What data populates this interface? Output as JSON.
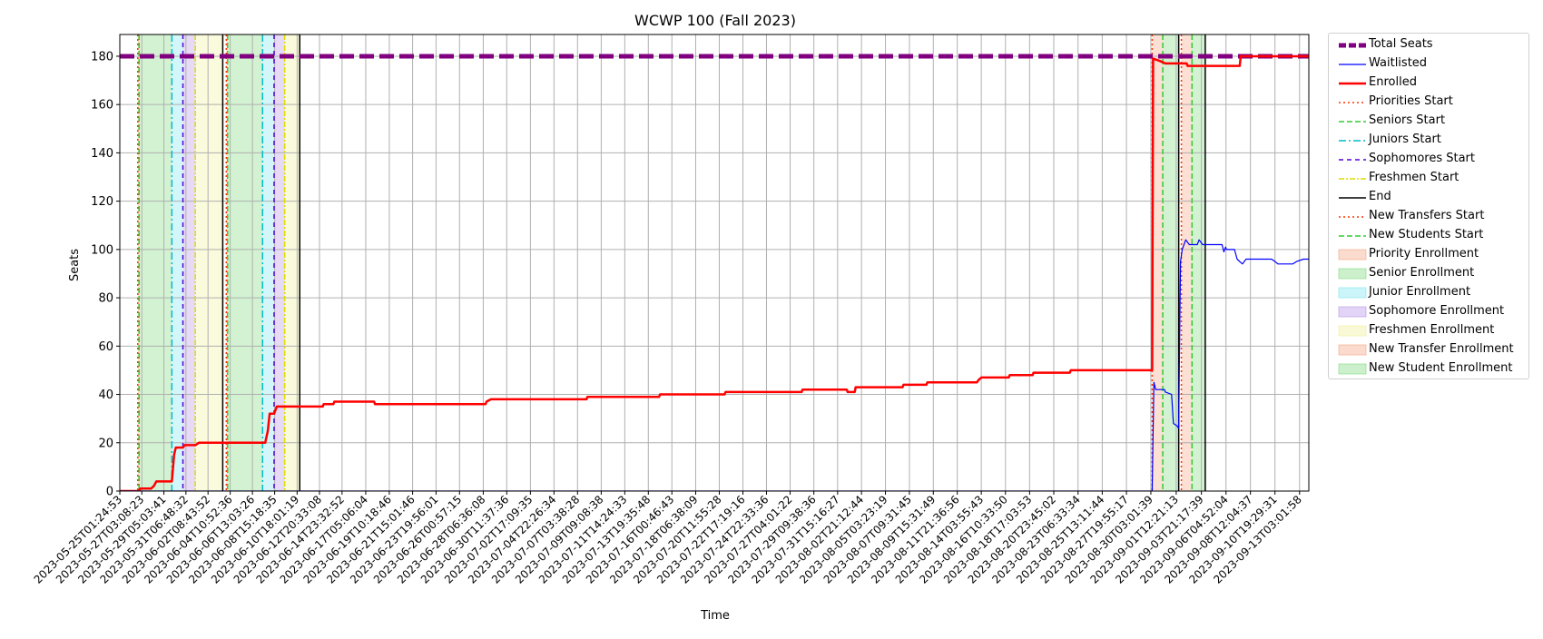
{
  "chart_data": {
    "type": "line",
    "title": "WCWP 100 (Fall 2023)",
    "xlabel": "Time",
    "ylabel": "Seats",
    "ylim": [
      0,
      189
    ],
    "xlim": [
      "2023-05-25T01:24:53",
      "2023-09-14T00:00:00"
    ],
    "y_ticks": [
      0,
      20,
      40,
      60,
      80,
      100,
      120,
      140,
      160,
      180
    ],
    "grid": true,
    "legend_position": "outside-right",
    "x_tick_labels": [
      "2023-05-25T01:24:53",
      "2023-05-27T03:08:23",
      "2023-05-29T05:03:41",
      "2023-05-31T06:48:32",
      "2023-06-02T08:43:52",
      "2023-06-04T10:52:36",
      "2023-06-06T13:03:26",
      "2023-06-08T15:18:35",
      "2023-06-10T18:01:19",
      "2023-06-12T20:33:08",
      "2023-06-14T23:32:52",
      "2023-06-17T05:06:04",
      "2023-06-19T10:18:46",
      "2023-06-21T15:01:46",
      "2023-06-23T19:56:01",
      "2023-06-26T00:57:15",
      "2023-06-28T06:36:08",
      "2023-06-30T11:37:36",
      "2023-07-02T17:09:35",
      "2023-07-04T22:26:34",
      "2023-07-07T03:38:28",
      "2023-07-09T09:08:38",
      "2023-07-11T14:24:33",
      "2023-07-13T19:35:48",
      "2023-07-16T00:46:43",
      "2023-07-18T06:38:09",
      "2023-07-20T11:55:28",
      "2023-07-22T17:19:16",
      "2023-07-24T22:33:36",
      "2023-07-27T04:01:22",
      "2023-07-29T09:38:36",
      "2023-07-31T15:16:27",
      "2023-08-02T21:12:44",
      "2023-08-05T03:23:19",
      "2023-08-07T09:31:45",
      "2023-08-09T15:31:49",
      "2023-08-11T21:36:56",
      "2023-08-14T03:55:43",
      "2023-08-16T10:33:50",
      "2023-08-18T17:03:53",
      "2023-08-20T23:45:02",
      "2023-08-23T06:33:34",
      "2023-08-25T13:11:44",
      "2023-08-27T19:55:17",
      "2023-08-30T03:01:39",
      "2023-09-01T12:21:13",
      "2023-09-03T21:17:39",
      "2023-09-06T04:52:04",
      "2023-09-08T12:04:37",
      "2023-09-10T19:29:31",
      "2023-09-13T03:01:58"
    ],
    "total_seats": 180,
    "series": [
      {
        "name": "Enrolled",
        "color": "#ff0000",
        "points": [
          [
            "2023-05-25T01:24:53",
            0
          ],
          [
            "2023-05-26T20:00:00",
            0
          ],
          [
            "2023-05-27T00:00:00",
            1
          ],
          [
            "2023-05-28T00:00:00",
            1
          ],
          [
            "2023-05-28T06:00:00",
            2
          ],
          [
            "2023-05-28T12:00:00",
            4
          ],
          [
            "2023-05-29T23:00:00",
            4
          ],
          [
            "2023-05-30T00:00:00",
            6
          ],
          [
            "2023-05-30T04:00:00",
            15
          ],
          [
            "2023-05-30T08:00:00",
            18
          ],
          [
            "2023-05-31T00:00:00",
            18
          ],
          [
            "2023-05-31T04:00:00",
            19
          ],
          [
            "2023-06-01T04:00:00",
            19
          ],
          [
            "2023-06-01T12:00:00",
            20
          ],
          [
            "2023-06-07T18:00:00",
            20
          ],
          [
            "2023-06-08T00:00:00",
            25
          ],
          [
            "2023-06-08T04:00:00",
            32
          ],
          [
            "2023-06-08T14:00:00",
            32
          ],
          [
            "2023-06-08T20:00:00",
            35
          ],
          [
            "2023-06-13T04:00:00",
            35
          ],
          [
            "2023-06-13T06:00:00",
            36
          ],
          [
            "2023-06-14T04:00:00",
            36
          ],
          [
            "2023-06-14T06:00:00",
            37
          ],
          [
            "2023-06-18T00:00:00",
            37
          ],
          [
            "2023-06-18T02:00:00",
            36
          ],
          [
            "2023-06-28T12:00:00",
            36
          ],
          [
            "2023-06-28T14:00:00",
            37
          ],
          [
            "2023-06-29T00:00:00",
            38
          ],
          [
            "2023-07-08T00:00:00",
            38
          ],
          [
            "2023-07-08T02:00:00",
            39
          ],
          [
            "2023-07-14T20:00:00",
            39
          ],
          [
            "2023-07-14T22:00:00",
            40
          ],
          [
            "2023-07-21T00:00:00",
            40
          ],
          [
            "2023-07-21T02:00:00",
            41
          ],
          [
            "2023-07-28T06:00:00",
            41
          ],
          [
            "2023-07-28T08:00:00",
            42
          ],
          [
            "2023-08-01T12:00:00",
            42
          ],
          [
            "2023-08-01T14:00:00",
            41
          ],
          [
            "2023-08-02T06:00:00",
            41
          ],
          [
            "2023-08-02T08:00:00",
            43
          ],
          [
            "2023-08-06T18:00:00",
            43
          ],
          [
            "2023-08-06T20:00:00",
            44
          ],
          [
            "2023-08-09T00:00:00",
            44
          ],
          [
            "2023-08-09T02:00:00",
            45
          ],
          [
            "2023-08-13T18:00:00",
            45
          ],
          [
            "2023-08-13T22:00:00",
            46
          ],
          [
            "2023-08-14T04:00:00",
            47
          ],
          [
            "2023-08-16T18:00:00",
            47
          ],
          [
            "2023-08-16T20:00:00",
            48
          ],
          [
            "2023-08-19T00:00:00",
            48
          ],
          [
            "2023-08-19T02:00:00",
            49
          ],
          [
            "2023-08-22T12:00:00",
            49
          ],
          [
            "2023-08-22T14:00:00",
            50
          ],
          [
            "2023-08-30T06:00:00",
            50
          ],
          [
            "2023-08-30T08:00:00",
            179
          ],
          [
            "2023-08-31T00:00:00",
            178
          ],
          [
            "2023-08-31T12:00:00",
            177
          ],
          [
            "2023-09-02T12:00:00",
            177
          ],
          [
            "2023-09-02T14:00:00",
            176
          ],
          [
            "2023-09-07T12:00:00",
            176
          ],
          [
            "2023-09-07T14:00:00",
            180
          ],
          [
            "2023-09-14T00:00:00",
            180
          ]
        ]
      },
      {
        "name": "Waitlisted",
        "color": "#0000ff",
        "points": [
          [
            "2023-05-25T01:24:53",
            0
          ],
          [
            "2023-08-30T06:00:00",
            0
          ],
          [
            "2023-08-30T10:00:00",
            45
          ],
          [
            "2023-08-30T14:00:00",
            42
          ],
          [
            "2023-08-31T10:00:00",
            42
          ],
          [
            "2023-08-31T12:00:00",
            41
          ],
          [
            "2023-09-01T02:00:00",
            40
          ],
          [
            "2023-09-01T06:00:00",
            28
          ],
          [
            "2023-09-01T14:00:00",
            27
          ],
          [
            "2023-09-01T18:00:00",
            26
          ],
          [
            "2023-09-01T22:00:00",
            95
          ],
          [
            "2023-09-02T02:00:00",
            100
          ],
          [
            "2023-09-02T10:00:00",
            104
          ],
          [
            "2023-09-02T18:00:00",
            102
          ],
          [
            "2023-09-03T12:00:00",
            102
          ],
          [
            "2023-09-03T16:00:00",
            104
          ],
          [
            "2023-09-04T00:00:00",
            102
          ],
          [
            "2023-09-05T20:00:00",
            102
          ],
          [
            "2023-09-06T00:00:00",
            99
          ],
          [
            "2023-09-06T04:00:00",
            101
          ],
          [
            "2023-09-06T06:00:00",
            100
          ],
          [
            "2023-09-07T00:00:00",
            100
          ],
          [
            "2023-09-07T06:00:00",
            96
          ],
          [
            "2023-09-07T12:00:00",
            95
          ],
          [
            "2023-09-07T18:00:00",
            94
          ],
          [
            "2023-09-08T02:00:00",
            96
          ],
          [
            "2023-09-10T12:00:00",
            96
          ],
          [
            "2023-09-10T20:00:00",
            95
          ],
          [
            "2023-09-11T02:00:00",
            94
          ],
          [
            "2023-09-12T12:00:00",
            94
          ],
          [
            "2023-09-12T20:00:00",
            95
          ],
          [
            "2023-09-13T12:00:00",
            96
          ],
          [
            "2023-09-14T00:00:00",
            96
          ]
        ]
      }
    ],
    "enrollment_periods": [
      {
        "name": "Priority Enrollment",
        "start": "2023-05-26T18:00:00",
        "end": "2023-05-26T21:00:00",
        "color": "#f4a582"
      },
      {
        "name": "Senior Enrollment",
        "start": "2023-05-26T21:00:00",
        "end": "2023-05-29T23:00:00",
        "color": "#7fd97f"
      },
      {
        "name": "Junior Enrollment",
        "start": "2023-05-29T23:00:00",
        "end": "2023-05-31T00:00:00",
        "color": "#7fe5ef"
      },
      {
        "name": "Sophomore Enrollment",
        "start": "2023-05-31T00:00:00",
        "end": "2023-06-01T04:00:00",
        "color": "#b794e8"
      },
      {
        "name": "Freshmen Enrollment",
        "start": "2023-06-01T04:00:00",
        "end": "2023-06-03T18:00:00",
        "color": "#f0f09a"
      },
      {
        "name": "Priority Enrollment",
        "start": "2023-06-04T02:00:00",
        "end": "2023-06-04T05:00:00",
        "color": "#f4a582"
      },
      {
        "name": "Senior Enrollment",
        "start": "2023-06-04T05:00:00",
        "end": "2023-06-07T12:00:00",
        "color": "#7fd97f"
      },
      {
        "name": "Junior Enrollment",
        "start": "2023-06-07T12:00:00",
        "end": "2023-06-08T14:00:00",
        "color": "#7fe5ef"
      },
      {
        "name": "Sophomore Enrollment",
        "start": "2023-06-08T14:00:00",
        "end": "2023-06-09T14:00:00",
        "color": "#b794e8"
      },
      {
        "name": "Freshmen Enrollment",
        "start": "2023-06-09T14:00:00",
        "end": "2023-06-11T00:00:00",
        "color": "#f0f09a"
      },
      {
        "name": "New Transfer Enrollment",
        "start": "2023-08-30T06:00:00",
        "end": "2023-08-31T06:00:00",
        "color": "#f4a582"
      },
      {
        "name": "New Student Enrollment",
        "start": "2023-08-31T06:00:00",
        "end": "2023-09-01T18:00:00",
        "color": "#7fd97f"
      },
      {
        "name": "New Transfer Enrollment",
        "start": "2023-09-02T00:00:00",
        "end": "2023-09-03T00:00:00",
        "color": "#f4a582"
      },
      {
        "name": "New Student Enrollment",
        "start": "2023-09-03T00:00:00",
        "end": "2023-09-04T06:00:00",
        "color": "#7fd97f"
      }
    ],
    "markers": [
      {
        "name": "Priorities Start",
        "time": "2023-05-26T18:00:00",
        "color": "#ff3300",
        "dash": "2,3"
      },
      {
        "name": "Seniors Start",
        "time": "2023-05-26T21:00:00",
        "color": "#33cc33",
        "dash": "6,3"
      },
      {
        "name": "Juniors Start",
        "time": "2023-05-29T23:00:00",
        "color": "#00bbcc",
        "dash": "8,3,2,3"
      },
      {
        "name": "Sophomores Start",
        "time": "2023-05-31T00:00:00",
        "color": "#5500dd",
        "dash": "5,4"
      },
      {
        "name": "Freshmen Start",
        "time": "2023-06-01T04:00:00",
        "color": "#dddd00",
        "dash": "6,2,2,2"
      },
      {
        "name": "End",
        "time": "2023-06-03T18:00:00",
        "color": "#000000",
        "dash": ""
      },
      {
        "name": "Priorities Start",
        "time": "2023-06-04T02:00:00",
        "color": "#ff3300",
        "dash": "2,3"
      },
      {
        "name": "Seniors Start",
        "time": "2023-06-04T05:00:00",
        "color": "#33cc33",
        "dash": "6,3"
      },
      {
        "name": "Juniors Start",
        "time": "2023-06-07T12:00:00",
        "color": "#00bbcc",
        "dash": "8,3,2,3"
      },
      {
        "name": "Sophomores Start",
        "time": "2023-06-08T14:00:00",
        "color": "#5500dd",
        "dash": "5,4"
      },
      {
        "name": "Freshmen Start",
        "time": "2023-06-09T14:00:00",
        "color": "#dddd00",
        "dash": "6,2,2,2"
      },
      {
        "name": "End",
        "time": "2023-06-11T00:00:00",
        "color": "#000000",
        "dash": ""
      },
      {
        "name": "New Transfers Start",
        "time": "2023-08-30T06:00:00",
        "color": "#ff3300",
        "dash": "2,3"
      },
      {
        "name": "New Students Start",
        "time": "2023-08-31T06:00:00",
        "color": "#33cc33",
        "dash": "6,3"
      },
      {
        "name": "End",
        "time": "2023-09-01T18:00:00",
        "color": "#000000",
        "dash": ""
      },
      {
        "name": "New Transfers Start",
        "time": "2023-09-02T00:00:00",
        "color": "#ff3300",
        "dash": "2,3"
      },
      {
        "name": "New Students Start",
        "time": "2023-09-03T00:00:00",
        "color": "#33cc33",
        "dash": "6,3"
      },
      {
        "name": "End",
        "time": "2023-09-04T06:00:00",
        "color": "#000000",
        "dash": ""
      }
    ],
    "legend": [
      {
        "label": "Total Seats",
        "kind": "line",
        "color": "#800080",
        "dash": "8,3",
        "width": 5
      },
      {
        "label": "Waitlisted",
        "kind": "line",
        "color": "#0000ff",
        "dash": "",
        "width": 1.2
      },
      {
        "label": "Enrolled",
        "kind": "line",
        "color": "#ff0000",
        "dash": "",
        "width": 2.5
      },
      {
        "label": "Priorities Start",
        "kind": "line",
        "color": "#ff3300",
        "dash": "2,3",
        "width": 1.5
      },
      {
        "label": "Seniors Start",
        "kind": "line",
        "color": "#33cc33",
        "dash": "6,3",
        "width": 1.5
      },
      {
        "label": "Juniors Start",
        "kind": "line",
        "color": "#00bbcc",
        "dash": "8,3,2,3",
        "width": 1.5
      },
      {
        "label": "Sophomores Start",
        "kind": "line",
        "color": "#5500dd",
        "dash": "5,4",
        "width": 1.5
      },
      {
        "label": "Freshmen Start",
        "kind": "line",
        "color": "#dddd00",
        "dash": "6,2,2,2",
        "width": 1.5
      },
      {
        "label": "End",
        "kind": "line",
        "color": "#000000",
        "dash": "",
        "width": 1.5
      },
      {
        "label": "New Transfers Start",
        "kind": "line",
        "color": "#ff3300",
        "dash": "2,3",
        "width": 1.5
      },
      {
        "label": "New Students Start",
        "kind": "line",
        "color": "#33cc33",
        "dash": "6,3",
        "width": 1.5
      },
      {
        "label": "Priority Enrollment",
        "kind": "patch",
        "color": "#f4a582"
      },
      {
        "label": "Senior Enrollment",
        "kind": "patch",
        "color": "#7fd97f"
      },
      {
        "label": "Junior Enrollment",
        "kind": "patch",
        "color": "#7fe5ef"
      },
      {
        "label": "Sophomore Enrollment",
        "kind": "patch",
        "color": "#b794e8"
      },
      {
        "label": "Freshmen Enrollment",
        "kind": "patch",
        "color": "#f0f09a"
      },
      {
        "label": "New Transfer Enrollment",
        "kind": "patch",
        "color": "#f4a582"
      },
      {
        "label": "New Student Enrollment",
        "kind": "patch",
        "color": "#7fd97f"
      }
    ]
  }
}
